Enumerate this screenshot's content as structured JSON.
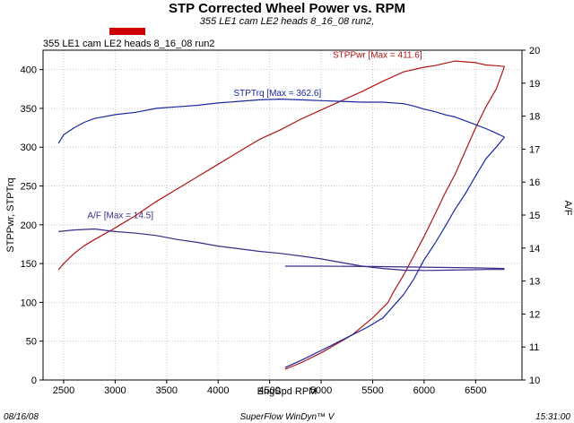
{
  "chart_data": {
    "type": "line",
    "title": "STP Corrected Wheel Power vs. RPM",
    "subtitle": "355 LE1 cam LE2 heads 8_16_08 run2,",
    "run_label": "355 LE1 cam LE2 heads 8_16_08 run2",
    "xlabel": "EngSpd RPM",
    "ylabel_left": "STPPwr, STPTrq",
    "ylabel_right": "A/F",
    "xlim": [
      2300,
      6950
    ],
    "ylim_left": [
      0,
      425
    ],
    "ylim_right": [
      10,
      20
    ],
    "x_ticks": [
      2500,
      3000,
      3500,
      4000,
      4500,
      5000,
      5500,
      6000,
      6500
    ],
    "y_ticks_left": [
      0,
      50,
      100,
      150,
      200,
      250,
      300,
      350,
      400
    ],
    "y_ticks_right": [
      10,
      11,
      12,
      13,
      14,
      15,
      16,
      17,
      18,
      19,
      20
    ],
    "grid": true,
    "legend_marker_color": "#cc0000",
    "footer_left": "08/16/08",
    "footer_center": "SuperFlow WinDyn™ V",
    "footer_right": "15:31:00",
    "series": [
      {
        "name": "STPPwr",
        "axis": "left",
        "color": "#b01515",
        "annotation": "STPPwr [Max = 411.6]",
        "x": [
          2450,
          2500,
          2600,
          2700,
          2800,
          3000,
          3200,
          3400,
          3600,
          3800,
          4000,
          4200,
          4400,
          4600,
          4800,
          5000,
          5200,
          5400,
          5600,
          5800,
          6000,
          6100,
          6200,
          6300,
          6400,
          6500,
          6600,
          6700,
          6780
        ],
        "y": [
          142,
          150,
          163,
          173,
          181,
          196,
          212,
          230,
          246,
          262,
          278,
          294,
          310,
          322,
          336,
          348,
          360,
          372,
          385,
          397,
          403,
          405,
          408,
          411,
          410,
          409,
          406,
          405,
          404
        ]
      },
      {
        "name": "STPTrq",
        "axis": "left",
        "color": "#1a28a0",
        "annotation": "STPTrq [Max = 362.6]",
        "x": [
          2450,
          2500,
          2600,
          2700,
          2800,
          3000,
          3200,
          3400,
          3600,
          3800,
          4000,
          4200,
          4400,
          4600,
          4800,
          5000,
          5200,
          5400,
          5600,
          5800,
          5900,
          6000,
          6100,
          6200,
          6300,
          6400,
          6500,
          6600,
          6700,
          6780
        ],
        "y": [
          305,
          316,
          325,
          332,
          337,
          342,
          345,
          350,
          352,
          354,
          357,
          359,
          361,
          362,
          361,
          360,
          359,
          358,
          358,
          356,
          353,
          349,
          346,
          342,
          339,
          334,
          329,
          324,
          318,
          313
        ]
      },
      {
        "name": "A/F",
        "axis": "right",
        "color": "#3a2a8a",
        "annotation": "A/F  [Max = 14.5]",
        "x": [
          2450,
          2600,
          2800,
          3000,
          3200,
          3400,
          3600,
          3800,
          4000,
          4200,
          4400,
          4600,
          4800,
          5000,
          5200,
          5400,
          5600,
          5800,
          6000,
          6200,
          6400,
          6600,
          6780
        ],
        "y": [
          14.5,
          14.55,
          14.58,
          14.5,
          14.45,
          14.38,
          14.26,
          14.17,
          14.06,
          13.98,
          13.9,
          13.84,
          13.76,
          13.67,
          13.56,
          13.45,
          13.38,
          13.33,
          13.32,
          13.33,
          13.34,
          13.35,
          13.35
        ]
      }
    ],
    "return_sweeps": [
      {
        "name": "STPPwr return",
        "axis": "left",
        "color": "#b01515",
        "x": [
          6780,
          6700,
          6600,
          6500,
          6400,
          6300,
          6200,
          6100,
          6000,
          5900,
          5800,
          5700,
          5650,
          5500,
          5300,
          5000,
          4800,
          4650
        ],
        "y": [
          404,
          375,
          352,
          325,
          295,
          265,
          240,
          212,
          185,
          160,
          135,
          113,
          100,
          80,
          58,
          35,
          22,
          14
        ]
      },
      {
        "name": "STPTrq return",
        "axis": "left",
        "color": "#1a28a0",
        "x": [
          6780,
          6700,
          6600,
          6500,
          6400,
          6300,
          6200,
          6100,
          6000,
          5900,
          5800,
          5700,
          5600,
          5450,
          5300,
          5000,
          4800,
          4650
        ],
        "y": [
          313,
          300,
          285,
          263,
          240,
          220,
          197,
          175,
          155,
          130,
          110,
          95,
          80,
          68,
          58,
          38,
          25,
          16
        ]
      },
      {
        "name": "A/F return",
        "axis": "right",
        "color": "#3a2a8a",
        "x": [
          4650,
          5000,
          5500,
          6000,
          6500,
          6780
        ],
        "y": [
          13.45,
          13.45,
          13.44,
          13.42,
          13.4,
          13.38
        ]
      }
    ]
  }
}
